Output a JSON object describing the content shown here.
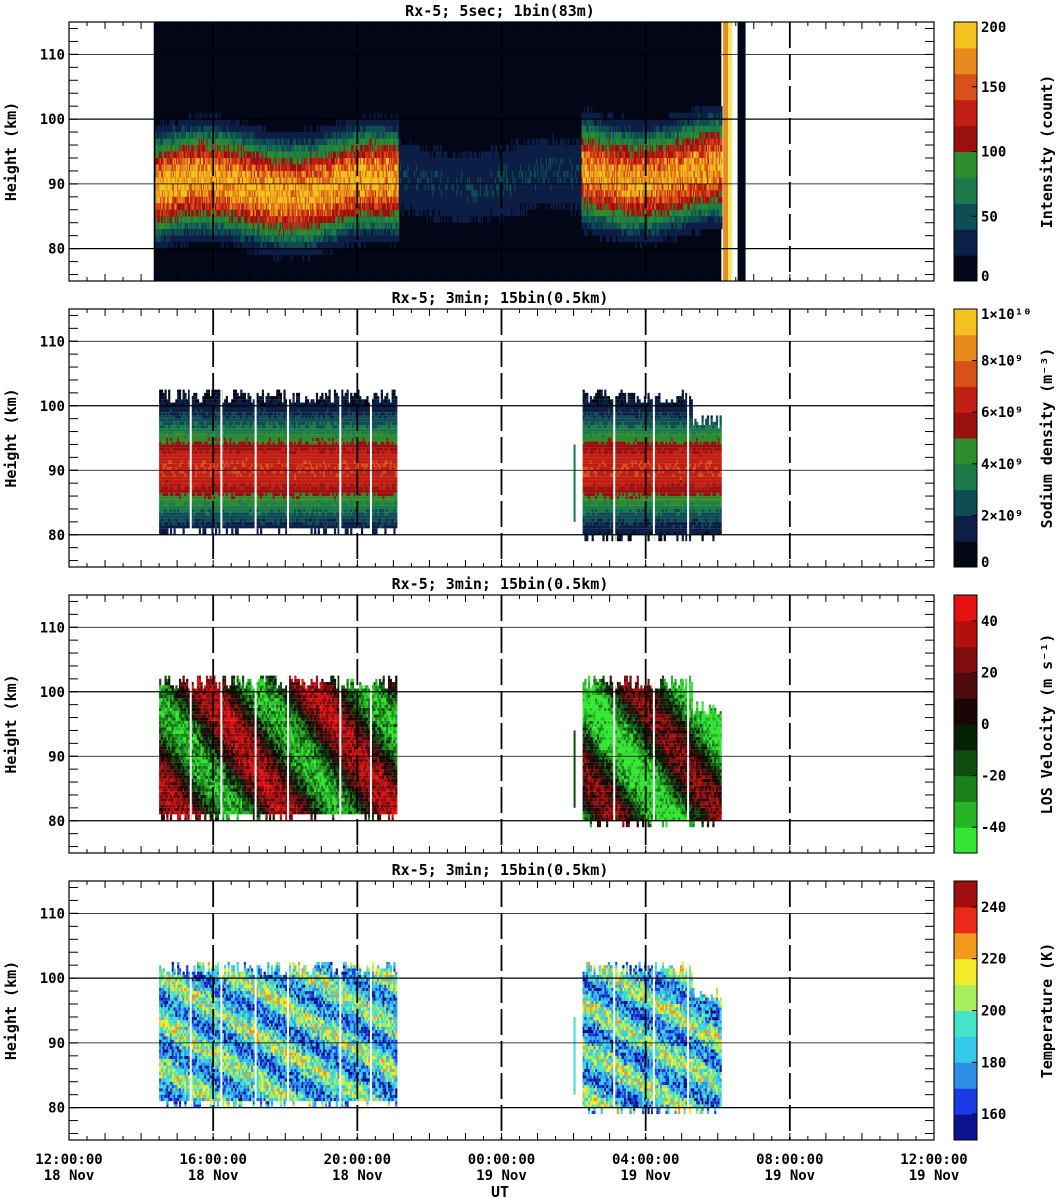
{
  "x_axis": {
    "label": "UT",
    "ticks": [
      {
        "time": "12:00:00",
        "date": "18 Nov",
        "hours": 12
      },
      {
        "time": "16:00:00",
        "date": "18 Nov",
        "hours": 16
      },
      {
        "time": "20:00:00",
        "date": "18 Nov",
        "hours": 20
      },
      {
        "time": "00:00:00",
        "date": "19 Nov",
        "hours": 24
      },
      {
        "time": "04:00:00",
        "date": "19 Nov",
        "hours": 28
      },
      {
        "time": "08:00:00",
        "date": "19 Nov",
        "hours": 32
      },
      {
        "time": "12:00:00",
        "date": "19 Nov",
        "hours": 36
      }
    ],
    "range_hours": [
      12,
      36
    ]
  },
  "chart_data": [
    {
      "type": "heatmap",
      "title": "Rx-5;  5sec; 1bin(83m)",
      "ylabel": "Height (km)",
      "ylim": [
        75,
        115
      ],
      "yticks": [
        "80",
        "90",
        "100",
        "110"
      ],
      "colorbar": {
        "label": "Intensity (count)",
        "ticks": [
          "0",
          "50",
          "100",
          "150",
          "200"
        ],
        "range": [
          0,
          200
        ],
        "colors": [
          "#020617",
          "#0c1f46",
          "#0f4d55",
          "#1b7a4a",
          "#2e8b2e",
          "#9b0f0f",
          "#c21f14",
          "#d8501a",
          "#e98a1c",
          "#f4c21e"
        ]
      },
      "data_segments": [
        {
          "start": 14.35,
          "end": 21.15,
          "layer_peak_km": 89,
          "intensity": 1.0
        },
        {
          "start": 21.15,
          "end": 26.2,
          "layer_peak_km": 90,
          "intensity": 0.2
        },
        {
          "start": 26.2,
          "end": 30.1,
          "layer_peak_km": 91,
          "intensity": 0.95
        }
      ],
      "notes": "bright saturated band near 06:25 19 Nov"
    },
    {
      "type": "heatmap",
      "title": "Rx-5; 3min; 15bin(0.5km)",
      "ylabel": "Height (km)",
      "ylim": [
        75,
        115
      ],
      "yticks": [
        "80",
        "90",
        "100",
        "110"
      ],
      "colorbar": {
        "label": "Sodium density (m⁻³)",
        "ticks": [
          "0",
          "2×10⁹",
          "4×10⁹",
          "6×10⁹",
          "8×10⁹",
          "1×10¹⁰"
        ],
        "range": [
          0,
          10000000000
        ],
        "colors": [
          "#020617",
          "#0c1f46",
          "#0f4d55",
          "#1b7a4a",
          "#2e8b2e",
          "#9b0f0f",
          "#c21f14",
          "#d8501a",
          "#e98a1c",
          "#f4c21e"
        ]
      },
      "data_segments": [
        {
          "start": 14.5,
          "end": 21.1,
          "bottom_km": 82,
          "top_km": 100
        },
        {
          "start": 26.25,
          "end": 30.1,
          "bottom_km": 81,
          "top_km": 100
        }
      ]
    },
    {
      "type": "heatmap",
      "title": "Rx-5; 3min; 15bin(0.5km)",
      "ylabel": "Height (km)",
      "ylim": [
        75,
        115
      ],
      "yticks": [
        "80",
        "90",
        "100",
        "110"
      ],
      "colorbar": {
        "label": "LOS Velocity (m s⁻¹)",
        "ticks": [
          "-40",
          "-20",
          "0",
          "20",
          "40"
        ],
        "range": [
          -50,
          50
        ],
        "colors": [
          "#33e633",
          "#26b326",
          "#1a801a",
          "#0f4d0f",
          "#062006",
          "#1a0505",
          "#4d0a0a",
          "#800d0d",
          "#b30f0f",
          "#e61212"
        ]
      },
      "data_segments": [
        {
          "start": 14.5,
          "end": 21.1,
          "bottom_km": 82,
          "top_km": 100
        },
        {
          "start": 26.25,
          "end": 30.1,
          "bottom_km": 81,
          "top_km": 100
        }
      ]
    },
    {
      "type": "heatmap",
      "title": "Rx-5; 3min; 15bin(0.5km)",
      "ylabel": "Height (km)",
      "ylim": [
        75,
        115
      ],
      "yticks": [
        "80",
        "90",
        "100",
        "110"
      ],
      "colorbar": {
        "label": "Temperature (K)",
        "ticks": [
          "160",
          "180",
          "200",
          "220",
          "240"
        ],
        "range": [
          150,
          250
        ],
        "colors": [
          "#0a128c",
          "#1a3ae6",
          "#2f8fe8",
          "#35c9ec",
          "#45e3c8",
          "#a8ee5a",
          "#f3ea2a",
          "#f39a1e",
          "#ea2a18",
          "#a00d0d"
        ]
      },
      "data_segments": [
        {
          "start": 14.5,
          "end": 21.1,
          "bottom_km": 82,
          "top_km": 100
        },
        {
          "start": 26.25,
          "end": 30.1,
          "bottom_km": 81,
          "top_km": 100
        }
      ]
    }
  ]
}
